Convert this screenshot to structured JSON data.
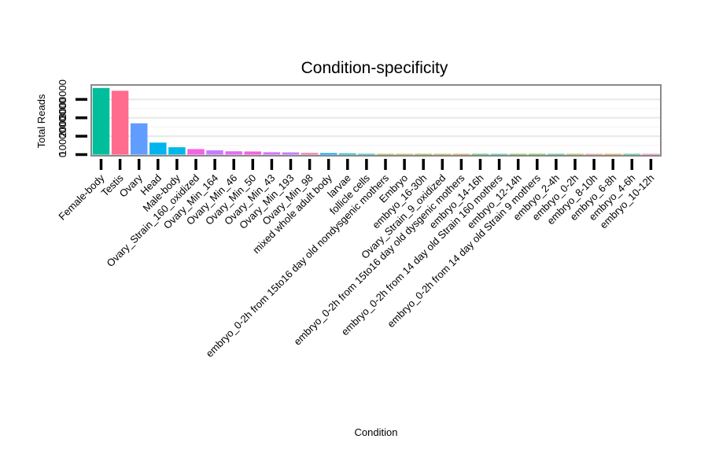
{
  "chart_data": {
    "type": "bar",
    "title": "Condition-specificity",
    "xlabel": "Condition",
    "ylabel": "Total Reads",
    "ylim": [
      0,
      3700000
    ],
    "yticks": [
      0,
      1000000,
      2000000,
      3000000
    ],
    "ytick_labels": [
      "0",
      "1000000",
      "2000000",
      "3000000"
    ],
    "grid": true,
    "legend": "none",
    "categories": [
      "Female-body",
      "Testis",
      "Ovary",
      "Head",
      "Male-body",
      "Ovary_Strain_160_oxidized",
      "Ovary_Min_164",
      "Ovary_Min_46",
      "Ovary_Min_50",
      "Ovary_Min_43",
      "Ovary_Min_193",
      "Ovary_Min_98",
      "mixed whole adult body",
      "larvae",
      "follicle cells",
      "embryo_0-2h from 15to16 day old nondysgenic mothers",
      "Embryo",
      "embryo_16-30h",
      "Ovary_Strain_9_oxidized",
      "embryo_0-2h from 15to16 day old dysgenic mothers",
      "embryo_14-16h",
      "embryo_0-2h from 14 day old Strain 160 mothers",
      "embryo_12-14h",
      "embryo_0-2h from 14 day old Strain 9 mothers",
      "embryo_2-4h",
      "embryo_0-2h",
      "embryo_8-10h",
      "embryo_6-8h",
      "embryo_4-6h",
      "embryo_10-12h"
    ],
    "values": [
      3620000,
      3470000,
      1700000,
      650000,
      400000,
      300000,
      230000,
      180000,
      170000,
      130000,
      120000,
      90000,
      80000,
      60000,
      40000,
      30000,
      30000,
      25000,
      20000,
      15000,
      10000,
      5000,
      4000,
      3000,
      2000,
      1500,
      1000,
      800,
      600,
      500
    ],
    "colors": [
      "#00BE9C",
      "#FF6C8E",
      "#619CFF",
      "#00B4EF",
      "#00B8E7",
      "#F564E3",
      "#C77CFF",
      "#E76BF3",
      "#F962DD",
      "#D575FE",
      "#C77CFF",
      "#F17CB0",
      "#00A9FF",
      "#00BFC4",
      "#00B8A0",
      "#A3A500",
      "#C49A00",
      "#7CAE00",
      "#B79F00",
      "#E58700",
      "#00BA38",
      "#00C08B",
      "#53B400",
      "#39B600",
      "#00BD5F",
      "#8EAB00",
      "#F8766D",
      "#DE8C00",
      "#00BF7D",
      "#FF61C3"
    ]
  }
}
